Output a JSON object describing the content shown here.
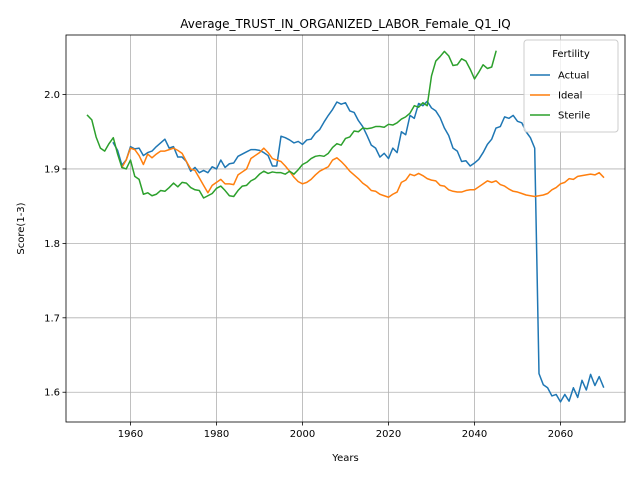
{
  "chart_data": {
    "type": "line",
    "title": "Average_TRUST_IN_ORGANIZED_LABOR_Female_Q1_IQ",
    "xlabel": "Years",
    "ylabel": "Score(1-3)",
    "xlim": [
      1945,
      2075
    ],
    "ylim": [
      1.56,
      2.08
    ],
    "xticks": [
      1960,
      1980,
      2000,
      2020,
      2040,
      2060
    ],
    "yticks": [
      1.6,
      1.7,
      1.8,
      1.9,
      2.0
    ],
    "ytick_labels": [
      "1.6",
      "1.7",
      "1.8",
      "1.9",
      "2.0"
    ],
    "grid": true,
    "legend": {
      "title": "Fertility",
      "position": "top-right"
    },
    "series": [
      {
        "name": "Actual",
        "color": "#1f77b4",
        "x": [
          1956,
          1957,
          1958,
          1959,
          1960,
          1961,
          1962,
          1963,
          1964,
          1965,
          1966,
          1967,
          1968,
          1969,
          1970,
          1971,
          1972,
          1973,
          1974,
          1975,
          1976,
          1977,
          1978,
          1979,
          1980,
          1981,
          1982,
          1983,
          1984,
          1985,
          1986,
          1987,
          1988,
          1989,
          1990,
          1991,
          1992,
          1993,
          1994,
          1995,
          1996,
          1997,
          1998,
          1999,
          2000,
          2001,
          2002,
          2003,
          2004,
          2005,
          2006,
          2007,
          2008,
          2009,
          2010,
          2011,
          2012,
          2013,
          2014,
          2015,
          2016,
          2017,
          2018,
          2019,
          2020,
          2021,
          2022,
          2023,
          2024,
          2025,
          2026,
          2027,
          2028,
          2029,
          2030,
          2031,
          2032,
          2033,
          2034,
          2035,
          2036,
          2037,
          2038,
          2039,
          2040,
          2041,
          2042,
          2043,
          2044,
          2045,
          2046,
          2047,
          2048,
          2049,
          2050,
          2051,
          2052,
          2053,
          2054,
          2055,
          2056,
          2057,
          2058,
          2059,
          2060,
          2061,
          2062,
          2063,
          2064,
          2065,
          2066,
          2067,
          2068,
          2069,
          2070
        ],
        "values": [
          1.935,
          1.925,
          1.905,
          1.912,
          1.93,
          1.927,
          1.928,
          1.918,
          1.922,
          1.924,
          1.93,
          1.935,
          1.94,
          1.928,
          1.93,
          1.916,
          1.916,
          1.91,
          1.897,
          1.902,
          1.895,
          1.898,
          1.895,
          1.903,
          1.9,
          1.912,
          1.902,
          1.907,
          1.908,
          1.917,
          1.92,
          1.923,
          1.926,
          1.926,
          1.925,
          1.922,
          1.918,
          1.904,
          1.904,
          1.944,
          1.942,
          1.939,
          1.935,
          1.937,
          1.933,
          1.939,
          1.94,
          1.948,
          1.953,
          1.963,
          1.972,
          1.98,
          1.99,
          1.987,
          1.989,
          1.978,
          1.976,
          1.965,
          1.957,
          1.945,
          1.932,
          1.928,
          1.916,
          1.921,
          1.914,
          1.928,
          1.922,
          1.95,
          1.946,
          1.972,
          1.968,
          1.988,
          1.985,
          1.991,
          1.982,
          1.978,
          1.969,
          1.955,
          1.945,
          1.928,
          1.924,
          1.91,
          1.911,
          1.904,
          1.908,
          1.913,
          1.922,
          1.933,
          1.94,
          1.955,
          1.957,
          1.97,
          1.968,
          1.972,
          1.964,
          1.962,
          1.95,
          1.942,
          1.928,
          1.625,
          1.61,
          1.606,
          1.595,
          1.597,
          1.587,
          1.597,
          1.588,
          1.606,
          1.593,
          1.616,
          1.603,
          1.624,
          1.609,
          1.621,
          1.607
        ]
      },
      {
        "name": "Ideal",
        "color": "#ff7f0e",
        "x": [
          1958,
          1959,
          1960,
          1961,
          1962,
          1963,
          1964,
          1965,
          1966,
          1967,
          1968,
          1969,
          1970,
          1971,
          1972,
          1973,
          1974,
          1975,
          1976,
          1977,
          1978,
          1979,
          1980,
          1981,
          1982,
          1983,
          1984,
          1985,
          1986,
          1987,
          1988,
          1989,
          1990,
          1991,
          1992,
          1993,
          1994,
          1995,
          1996,
          1997,
          1998,
          1999,
          2000,
          2001,
          2002,
          2003,
          2004,
          2005,
          2006,
          2007,
          2008,
          2009,
          2010,
          2011,
          2012,
          2013,
          2014,
          2015,
          2016,
          2017,
          2018,
          2019,
          2020,
          2021,
          2022,
          2023,
          2024,
          2025,
          2026,
          2027,
          2028,
          2029,
          2030,
          2031,
          2032,
          2033,
          2034,
          2035,
          2036,
          2037,
          2038,
          2039,
          2040,
          2041,
          2042,
          2043,
          2044,
          2045,
          2046,
          2047,
          2048,
          2049,
          2050,
          2051,
          2052,
          2053,
          2054,
          2055,
          2056,
          2057,
          2058,
          2059,
          2060,
          2061,
          2062,
          2063,
          2064,
          2065,
          2066,
          2067,
          2068,
          2069,
          2070
        ],
        "values": [
          1.902,
          1.912,
          1.928,
          1.926,
          1.918,
          1.906,
          1.92,
          1.915,
          1.92,
          1.924,
          1.924,
          1.926,
          1.928,
          1.925,
          1.921,
          1.91,
          1.9,
          1.898,
          1.888,
          1.878,
          1.868,
          1.878,
          1.882,
          1.886,
          1.88,
          1.88,
          1.879,
          1.892,
          1.896,
          1.9,
          1.914,
          1.918,
          1.922,
          1.928,
          1.922,
          1.914,
          1.912,
          1.91,
          1.904,
          1.897,
          1.889,
          1.883,
          1.88,
          1.882,
          1.886,
          1.892,
          1.897,
          1.9,
          1.903,
          1.912,
          1.915,
          1.91,
          1.904,
          1.897,
          1.892,
          1.887,
          1.881,
          1.877,
          1.871,
          1.87,
          1.866,
          1.864,
          1.862,
          1.866,
          1.869,
          1.882,
          1.885,
          1.893,
          1.891,
          1.894,
          1.891,
          1.887,
          1.885,
          1.884,
          1.878,
          1.877,
          1.872,
          1.87,
          1.869,
          1.869,
          1.871,
          1.872,
          1.872,
          1.876,
          1.88,
          1.884,
          1.882,
          1.884,
          1.879,
          1.877,
          1.873,
          1.87,
          1.869,
          1.867,
          1.865,
          1.864,
          1.863,
          1.864,
          1.865,
          1.867,
          1.872,
          1.875,
          1.88,
          1.882,
          1.887,
          1.886,
          1.89,
          1.891,
          1.892,
          1.893,
          1.892,
          1.895,
          1.889
        ]
      },
      {
        "name": "Sterile",
        "color": "#2ca02c",
        "x": [
          1950,
          1951,
          1952,
          1953,
          1954,
          1955,
          1956,
          1957,
          1958,
          1959,
          1960,
          1961,
          1962,
          1963,
          1964,
          1965,
          1966,
          1967,
          1968,
          1969,
          1970,
          1971,
          1972,
          1973,
          1974,
          1975,
          1976,
          1977,
          1978,
          1979,
          1980,
          1981,
          1982,
          1983,
          1984,
          1985,
          1986,
          1987,
          1988,
          1989,
          1990,
          1991,
          1992,
          1993,
          1994,
          1995,
          1996,
          1997,
          1998,
          1999,
          2000,
          2001,
          2002,
          2003,
          2004,
          2005,
          2006,
          2007,
          2008,
          2009,
          2010,
          2011,
          2012,
          2013,
          2014,
          2015,
          2016,
          2017,
          2018,
          2019,
          2020,
          2021,
          2022,
          2023,
          2024,
          2025,
          2026,
          2027,
          2028,
          2029,
          2030,
          2031,
          2032,
          2033,
          2034,
          2035,
          2036,
          2037,
          2038,
          2039,
          2040,
          2041,
          2042,
          2043,
          2044,
          2045
        ],
        "values": [
          1.972,
          1.966,
          1.943,
          1.928,
          1.924,
          1.934,
          1.942,
          1.92,
          1.902,
          1.9,
          1.912,
          1.89,
          1.886,
          1.866,
          1.868,
          1.864,
          1.866,
          1.871,
          1.87,
          1.875,
          1.881,
          1.876,
          1.882,
          1.881,
          1.875,
          1.872,
          1.871,
          1.861,
          1.864,
          1.867,
          1.874,
          1.877,
          1.871,
          1.864,
          1.863,
          1.871,
          1.877,
          1.878,
          1.884,
          1.887,
          1.893,
          1.897,
          1.894,
          1.896,
          1.895,
          1.895,
          1.893,
          1.897,
          1.893,
          1.899,
          1.906,
          1.909,
          1.914,
          1.917,
          1.918,
          1.917,
          1.921,
          1.929,
          1.934,
          1.932,
          1.941,
          1.943,
          1.951,
          1.95,
          1.955,
          1.954,
          1.955,
          1.957,
          1.957,
          1.956,
          1.96,
          1.959,
          1.962,
          1.967,
          1.97,
          1.975,
          1.985,
          1.983,
          1.989,
          1.985,
          2.025,
          2.045,
          2.051,
          2.058,
          2.052,
          2.039,
          2.04,
          2.048,
          2.045,
          2.034,
          2.021,
          2.03,
          2.04,
          2.035,
          2.037,
          2.058
        ]
      }
    ]
  }
}
